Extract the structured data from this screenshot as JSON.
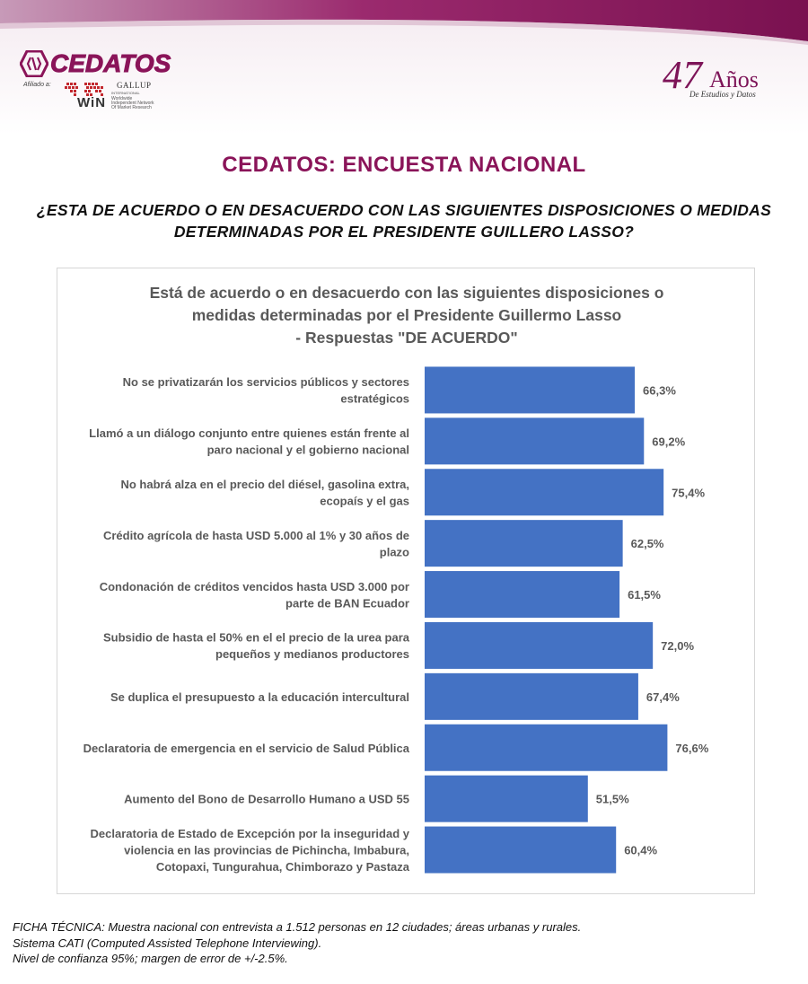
{
  "header": {
    "logo_text": "CEDATOS",
    "affiliate_label": "Afiliado a:",
    "win_label": "WiN",
    "win_sub": "Worldwide Independent Network Of Market Research",
    "gallup_label": "GALLUP",
    "gallup_sub": "INTERNATIONAL",
    "anniversary_number": "47",
    "anniversary_word": "Años",
    "anniversary_sub": "De Estudios y Datos"
  },
  "title": "CEDATOS: ENCUESTA NACIONAL",
  "question": "¿ESTA DE ACUERDO O EN DESACUERDO CON LAS SIGUIENTES DISPOSICIONES O MEDIDAS DETERMINADAS POR EL PRESIDENTE GUILLERO LASSO?",
  "chart_data": {
    "type": "bar",
    "orientation": "horizontal",
    "title_lines": [
      "Está de acuerdo o en desacuerdo con las siguientes disposiciones o",
      "medidas determinadas por el Presidente Guillermo Lasso",
      "- Respuestas \"DE ACUERDO\""
    ],
    "categories": [
      [
        "No se privatizarán los servicios públicos y sectores",
        "estratégicos"
      ],
      [
        "Llamó a un diálogo conjunto entre quienes están frente al",
        "paro nacional y el gobierno nacional"
      ],
      [
        "No habrá alza en el precio del diésel, gasolina extra,",
        "ecopaís y el gas"
      ],
      [
        "Crédito agrícola de hasta USD 5.000 al 1% y 30 años de",
        "plazo"
      ],
      [
        "Condonación de créditos vencidos hasta USD 3.000 por",
        "parte de BAN Ecuador"
      ],
      [
        "Subsidio de hasta el 50% en el el precio de la urea para",
        "pequeños y medianos productores"
      ],
      [
        "Se duplica el presupuesto a la educación intercultural"
      ],
      [
        "Declaratoria de emergencia en el servicio de Salud Pública"
      ],
      [
        "Aumento del Bono de Desarrollo Humano a USD 55"
      ],
      [
        "Declaratoria de Estado de Excepción por la inseguridad y",
        "violencia en las provincias de Pichincha, Imbabura,",
        "Cotopaxi, Tungurahua, Chimborazo y Pastaza"
      ]
    ],
    "values": [
      66.3,
      69.2,
      75.4,
      62.5,
      61.5,
      72.0,
      67.4,
      76.6,
      51.5,
      60.4
    ],
    "value_labels": [
      "66,3%",
      "69,2%",
      "75,4%",
      "62,5%",
      "61,5%",
      "72,0%",
      "67,4%",
      "76,6%",
      "51,5%",
      "60,4%"
    ],
    "xlim": [
      0,
      100
    ],
    "bar_color": "#4472c4",
    "grid": false,
    "legend": "none"
  },
  "footer": {
    "lines": [
      "FICHA TÉCNICA: Muestra nacional con entrevista a 1.512 personas en 12 ciudades; áreas urbanas y rurales.",
      "Sistema CATI (Computed Assisted Telephone Interviewing).",
      "Nivel de confianza 95%; margen de error de +/-2.5%."
    ]
  },
  "colors": {
    "brand": "#8a1459",
    "band_dark": "#7a1150",
    "band_light": "#b04a86"
  }
}
